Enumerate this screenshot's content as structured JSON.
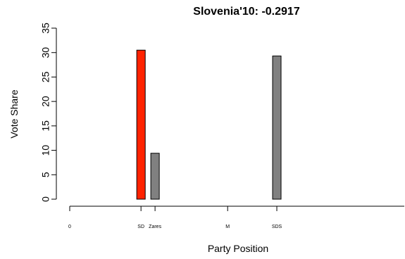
{
  "chart_data": {
    "type": "bar",
    "title": "Slovenia'10: -0.2917",
    "xlabel": "Party Position",
    "ylabel": "Vote Share",
    "ylim": [
      0,
      35
    ],
    "yticks": [
      "0",
      "5",
      "10",
      "15",
      "20",
      "25",
      "30",
      "35"
    ],
    "xlim": [
      0,
      1
    ],
    "xticks": [
      {
        "label": "0",
        "x": 0.0
      },
      {
        "label": "SD",
        "x": 0.213
      },
      {
        "label": "Zares",
        "x": 0.255
      },
      {
        "label": "M",
        "x": 0.472
      },
      {
        "label": "SDS",
        "x": 0.619
      }
    ],
    "bars": [
      {
        "party": "SD",
        "x": 0.213,
        "value": 30.5,
        "color": "#ff2200"
      },
      {
        "party": "Zares",
        "x": 0.255,
        "value": 9.4,
        "color": "#808080"
      },
      {
        "party": "SDS",
        "x": 0.619,
        "value": 29.3,
        "color": "#808080"
      }
    ],
    "grid": false,
    "legend": "none"
  }
}
